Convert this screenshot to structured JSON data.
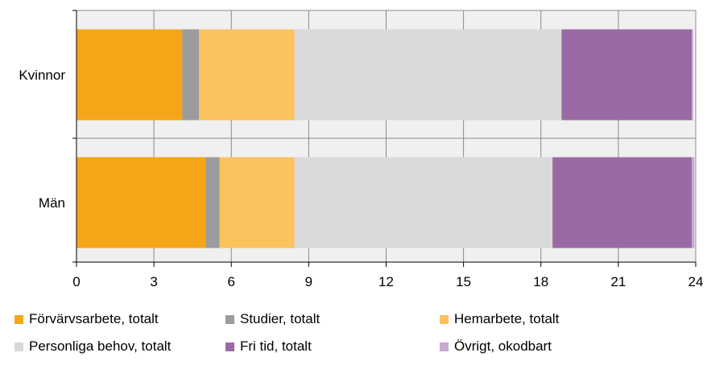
{
  "chart_data": {
    "type": "bar",
    "orientation": "horizontal",
    "stacked": true,
    "categories": [
      "Kvinnor",
      "Män"
    ],
    "series": [
      {
        "name": "Förvärvsarbete, totalt",
        "color": "#f7a518",
        "values": [
          4.1,
          5.0
        ]
      },
      {
        "name": "Studier, totalt",
        "color": "#9c9c9c",
        "values": [
          0.65,
          0.55
        ]
      },
      {
        "name": "Hemarbete, totalt",
        "color": "#fbc25d",
        "values": [
          3.7,
          2.9
        ]
      },
      {
        "name": "Personliga behov, totalt",
        "color": "#d9d9d9",
        "values": [
          10.35,
          10.0
        ]
      },
      {
        "name": "Fri tid, totalt",
        "color": "#9b6aa4",
        "values": [
          5.05,
          5.4
        ]
      },
      {
        "name": "Övrigt, okodbart",
        "color": "#c9a9d0",
        "values": [
          0.05,
          0.1
        ]
      }
    ],
    "xticks": [
      "0",
      "3",
      "6",
      "9",
      "12",
      "15",
      "18",
      "21",
      "24"
    ],
    "xlim": [
      0,
      24
    ],
    "title": "",
    "xlabel": "",
    "ylabel": "",
    "grid": true,
    "legend_position": "bottom"
  }
}
